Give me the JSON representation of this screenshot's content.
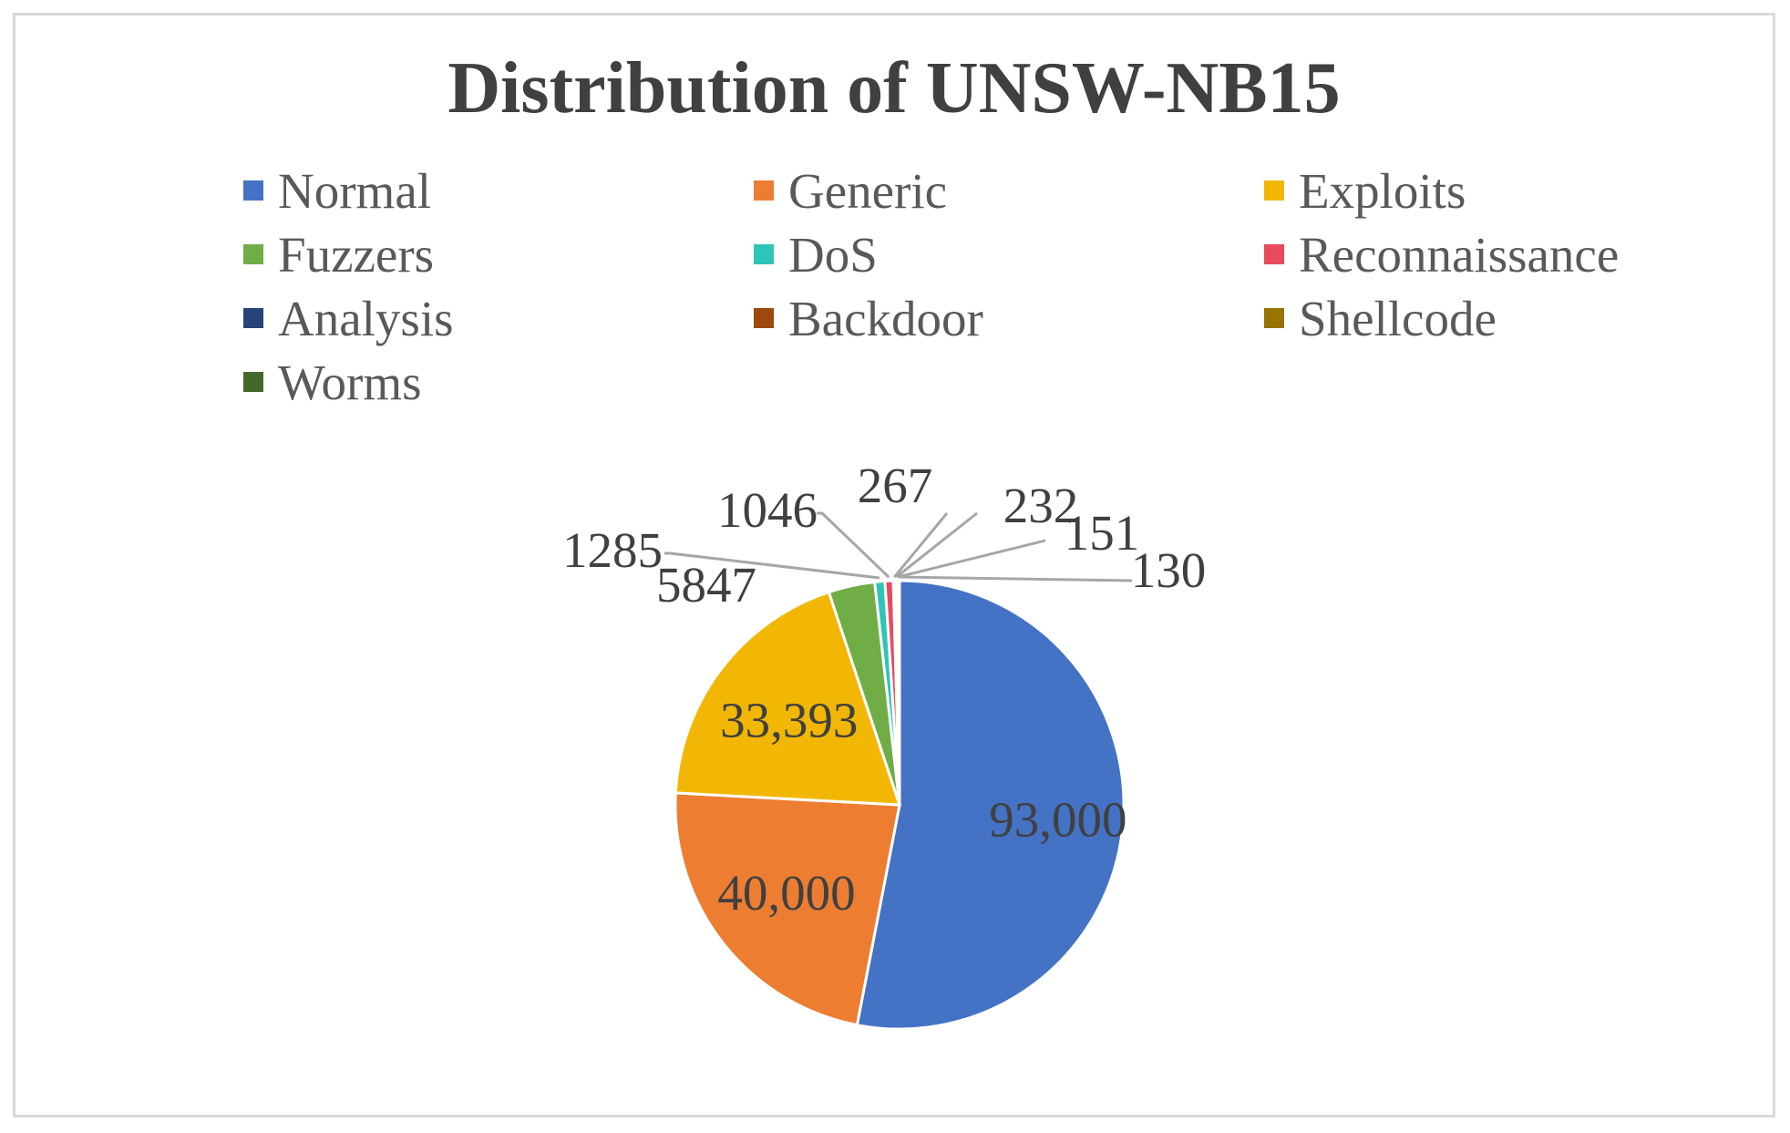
{
  "chart_data": {
    "type": "pie",
    "title": "Distribution of UNSW-NB15",
    "legend_position": "top",
    "categories": [
      "Normal",
      "Generic",
      "Exploits",
      "Fuzzers",
      "DoS",
      "Reconnaissance",
      "Analysis",
      "Backdoor",
      "Shellcode",
      "Worms"
    ],
    "values": [
      93000,
      40000,
      33393,
      5847,
      1285,
      1046,
      267,
      232,
      151,
      130
    ],
    "data_labels": [
      "93,000",
      "40,000",
      "33,393",
      "5847",
      "1285",
      "1046",
      "267",
      "232",
      "151",
      "130"
    ],
    "colors": [
      "#4472c4",
      "#ed7d31",
      "#f2b705",
      "#70ad47",
      "#2ec4b6",
      "#e84a5f",
      "#264478",
      "#9e480e",
      "#997300",
      "#43682b"
    ]
  }
}
